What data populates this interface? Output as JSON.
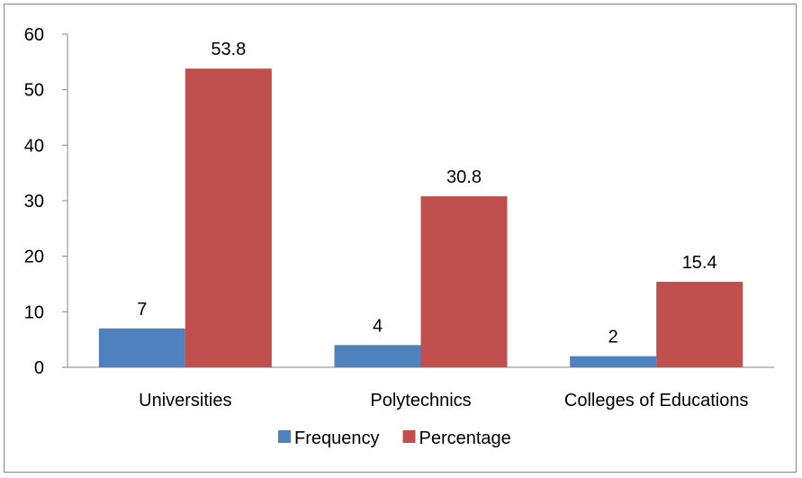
{
  "chart_data": {
    "type": "bar",
    "categories": [
      "Universities",
      "Polytechnics",
      "Colleges of Educations"
    ],
    "series": [
      {
        "name": "Frequency",
        "values": [
          7,
          4,
          2
        ],
        "labels": [
          "7",
          "4",
          "2"
        ],
        "color": "#4F81BD"
      },
      {
        "name": "Percentage",
        "values": [
          53.8,
          30.8,
          15.4
        ],
        "labels": [
          "53.8",
          "30.8",
          "15.4"
        ],
        "color": "#C0504D"
      }
    ],
    "title": "",
    "xlabel": "",
    "ylabel": "",
    "ylim": [
      0,
      60
    ],
    "yticks": [
      0,
      10,
      20,
      30,
      40,
      50,
      60
    ],
    "grid": false,
    "legend_position": "bottom"
  }
}
